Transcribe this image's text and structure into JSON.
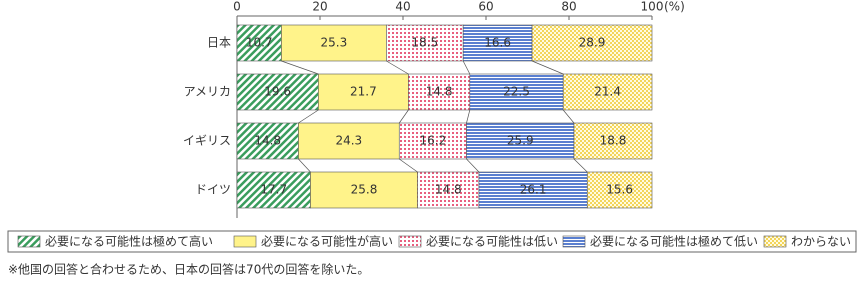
{
  "chart_data": {
    "type": "stacked-barh",
    "categories": [
      "日本",
      "アメリカ",
      "イギリス",
      "ドイツ"
    ],
    "series": [
      {
        "name": "必要になる可能性は極めて高い",
        "color": "#3a9d5d",
        "pattern": "diagonal",
        "values": [
          10.7,
          19.6,
          14.8,
          17.7
        ]
      },
      {
        "name": "必要になる可能性が高い",
        "color": "#fff38a",
        "pattern": "solid",
        "values": [
          25.3,
          21.7,
          24.3,
          25.8
        ]
      },
      {
        "name": "必要になる可能性は低い",
        "color": "#e8607f",
        "pattern": "dots",
        "values": [
          18.5,
          14.8,
          16.2,
          14.8
        ]
      },
      {
        "name": "必要になる可能性は極めて低い",
        "color": "#5a7fd0",
        "pattern": "hlines",
        "values": [
          16.6,
          22.5,
          25.9,
          26.1
        ]
      },
      {
        "name": "わからない",
        "color": "#f3d55a",
        "pattern": "check",
        "values": [
          28.9,
          21.4,
          18.8,
          15.6
        ]
      }
    ],
    "xlim": [
      0,
      100
    ],
    "xticks": [
      0,
      20,
      40,
      60,
      80,
      100
    ],
    "x_unit": "(%)",
    "note": "※他国の回答と合わせるため、日本の回答は70代の回答を除いた。"
  }
}
